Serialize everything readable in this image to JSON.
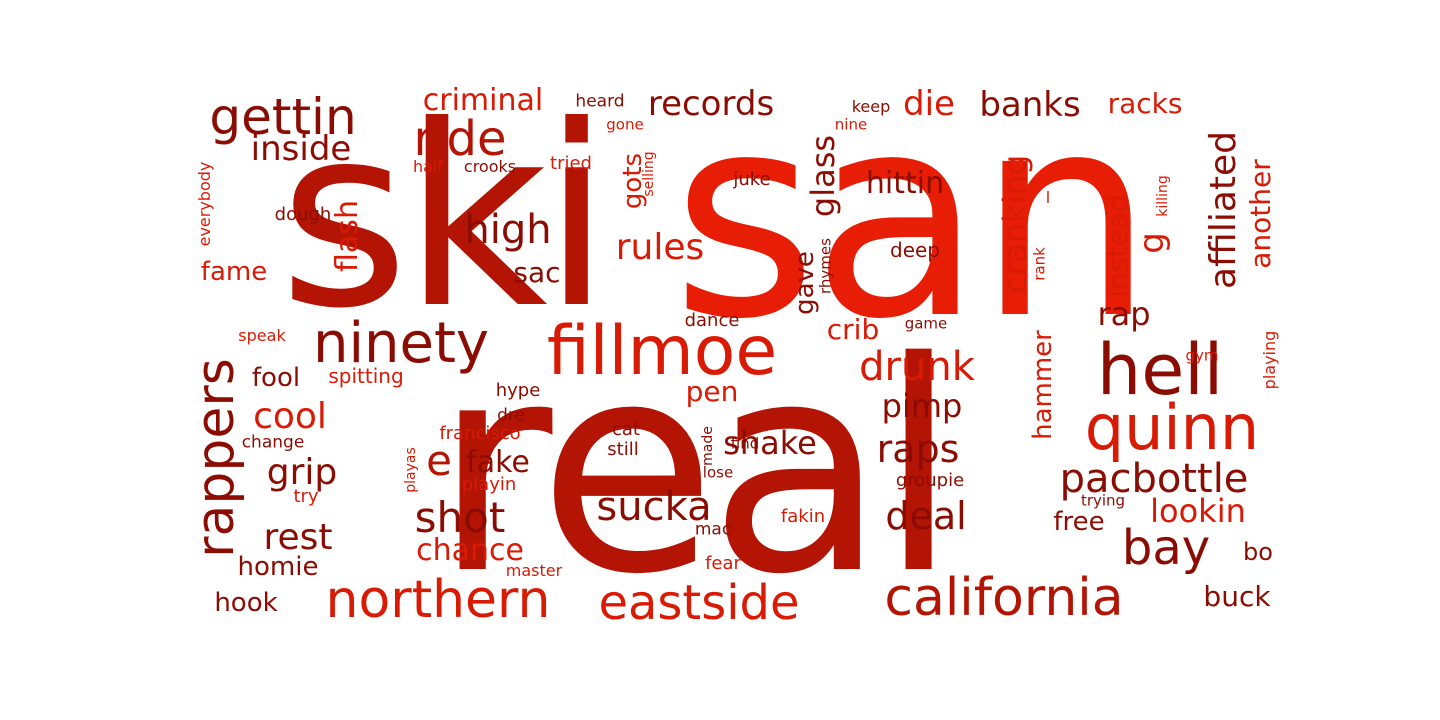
{
  "palette": {
    "dark": "#8b0c02",
    "mid": "#b31404",
    "bright": "#d91a05",
    "vivid": "#e81d05"
  },
  "words": [
    {
      "text": "san",
      "color": "vivid"
    },
    {
      "text": "ski",
      "color": "mid"
    },
    {
      "text": "real",
      "color": "mid"
    },
    {
      "text": "fillmoe",
      "color": "bright"
    },
    {
      "text": "northern",
      "color": "bright"
    },
    {
      "text": "eastside",
      "color": "bright"
    },
    {
      "text": "california",
      "color": "mid"
    },
    {
      "text": "hell",
      "color": "dark"
    },
    {
      "text": "quinn",
      "color": "bright"
    },
    {
      "text": "ninety",
      "color": "dark"
    },
    {
      "text": "rappers",
      "color": "dark"
    },
    {
      "text": "bay",
      "color": "dark"
    },
    {
      "text": "gettin",
      "color": "dark"
    },
    {
      "text": "ride",
      "color": "mid"
    },
    {
      "text": "pacbottle",
      "color": "dark"
    },
    {
      "text": "sucka",
      "color": "dark"
    },
    {
      "text": "shot",
      "color": "dark"
    },
    {
      "text": "high",
      "color": "dark"
    },
    {
      "text": "drunk",
      "color": "bright"
    },
    {
      "text": "affiliated",
      "color": "dark"
    },
    {
      "text": "banks",
      "color": "dark"
    },
    {
      "text": "records",
      "color": "dark"
    },
    {
      "text": "inside",
      "color": "dark"
    },
    {
      "text": "cool",
      "color": "bright"
    },
    {
      "text": "rest",
      "color": "dark"
    },
    {
      "text": "grip",
      "color": "dark"
    },
    {
      "text": "raps",
      "color": "dark"
    },
    {
      "text": "deal",
      "color": "dark"
    },
    {
      "text": "rules",
      "color": "bright"
    },
    {
      "text": "glass",
      "color": "dark"
    },
    {
      "text": "cranking",
      "color": "bright"
    },
    {
      "text": "die",
      "color": "bright"
    },
    {
      "text": "criminal",
      "color": "bright"
    },
    {
      "text": "racks",
      "color": "bright"
    },
    {
      "text": "chance",
      "color": "bright"
    },
    {
      "text": "lookin",
      "color": "bright"
    },
    {
      "text": "shake",
      "color": "dark"
    },
    {
      "text": "fake",
      "color": "dark"
    },
    {
      "text": "e",
      "color": "mid"
    },
    {
      "text": "pimp",
      "color": "dark"
    },
    {
      "text": "instead",
      "color": "bright"
    },
    {
      "text": "another",
      "color": "bright"
    },
    {
      "text": "hittin",
      "color": "dark"
    },
    {
      "text": "g",
      "color": "bright"
    },
    {
      "text": "flash",
      "color": "bright"
    },
    {
      "text": "rap",
      "color": "dark"
    },
    {
      "text": "hammer",
      "color": "bright"
    },
    {
      "text": "homie",
      "color": "dark"
    },
    {
      "text": "hook",
      "color": "dark"
    },
    {
      "text": "fool",
      "color": "dark"
    },
    {
      "text": "fame",
      "color": "bright"
    },
    {
      "text": "sac",
      "color": "dark"
    },
    {
      "text": "gots",
      "color": "bright"
    },
    {
      "text": "buck",
      "color": "dark"
    },
    {
      "text": "free",
      "color": "dark"
    },
    {
      "text": "pen",
      "color": "bright"
    },
    {
      "text": "crib",
      "color": "bright"
    },
    {
      "text": "gave",
      "color": "dark"
    },
    {
      "text": "bo",
      "color": "dark"
    },
    {
      "text": "spitting",
      "color": "bright"
    },
    {
      "text": "francisco",
      "color": "bright"
    },
    {
      "text": "playin",
      "color": "bright"
    },
    {
      "text": "still",
      "color": "dark"
    },
    {
      "text": "cat",
      "color": "dark"
    },
    {
      "text": "hype",
      "color": "dark"
    },
    {
      "text": "dre",
      "color": "dark"
    },
    {
      "text": "dance",
      "color": "dark"
    },
    {
      "text": "deep",
      "color": "dark"
    },
    {
      "text": "juke",
      "color": "dark"
    },
    {
      "text": "groupie",
      "color": "dark"
    },
    {
      "text": "fakin",
      "color": "bright"
    },
    {
      "text": "mac",
      "color": "dark"
    },
    {
      "text": "fear",
      "color": "bright"
    },
    {
      "text": "master",
      "color": "bright"
    },
    {
      "text": "change",
      "color": "dark"
    },
    {
      "text": "try",
      "color": "bright"
    },
    {
      "text": "speak",
      "color": "bright"
    },
    {
      "text": "dough",
      "color": "dark"
    },
    {
      "text": "everybody",
      "color": "bright"
    },
    {
      "text": "heard",
      "color": "dark"
    },
    {
      "text": "gone",
      "color": "bright"
    },
    {
      "text": "half",
      "color": "bright"
    },
    {
      "text": "crooks",
      "color": "dark"
    },
    {
      "text": "tried",
      "color": "bright"
    },
    {
      "text": "selling",
      "color": "bright"
    },
    {
      "text": "keep",
      "color": "dark"
    },
    {
      "text": "nine",
      "color": "bright"
    },
    {
      "text": "rhymes",
      "color": "dark"
    },
    {
      "text": "rank",
      "color": "bright"
    },
    {
      "text": "killing",
      "color": "bright"
    },
    {
      "text": "l",
      "color": "bright"
    },
    {
      "text": "game",
      "color": "dark"
    },
    {
      "text": "gym",
      "color": "bright"
    },
    {
      "text": "playing",
      "color": "bright"
    },
    {
      "text": "trying",
      "color": "dark"
    },
    {
      "text": "find",
      "color": "dark"
    },
    {
      "text": "lose",
      "color": "dark"
    },
    {
      "text": "made",
      "color": "dark"
    },
    {
      "text": "playas",
      "color": "bright"
    }
  ]
}
